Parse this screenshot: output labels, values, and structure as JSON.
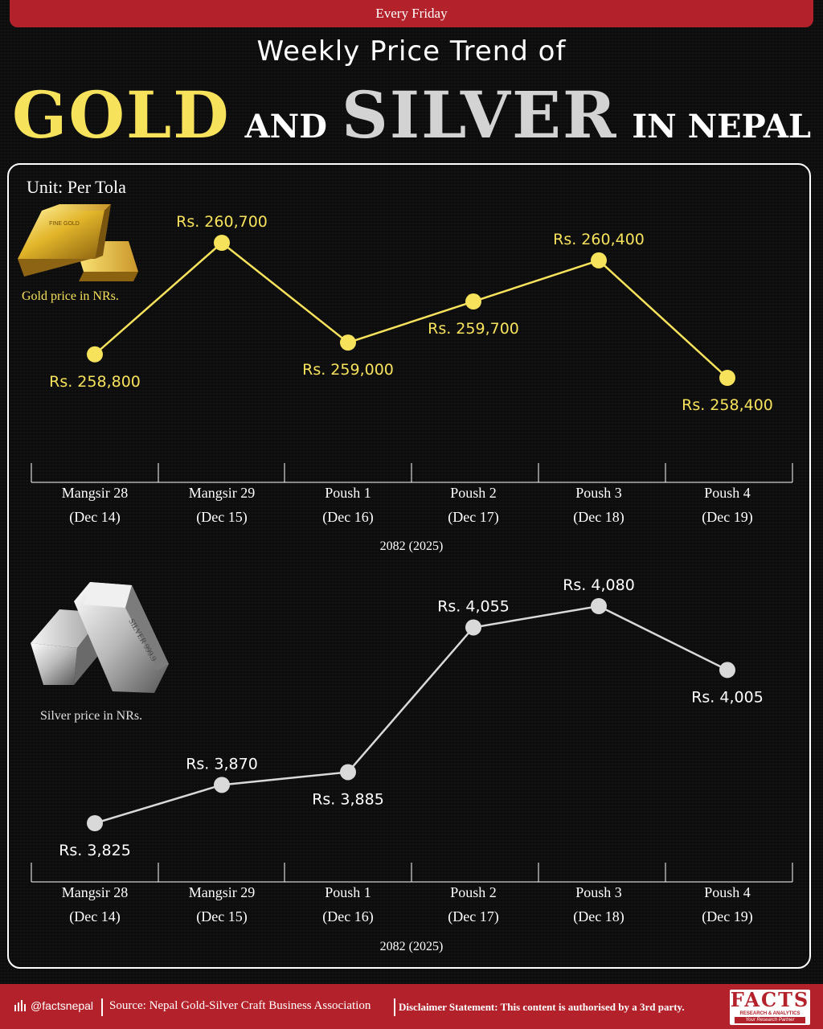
{
  "header": {
    "top_banner": "Every Friday"
  },
  "title": {
    "line1": "Weekly Price Trend of",
    "gold": "GOLD",
    "and": "AND",
    "silver": "SILVER",
    "in_nepal": "IN NEPAL"
  },
  "unit": "Unit: Per Tola",
  "gold_caption": "Gold price in NRs.",
  "silver_caption": "Silver price in NRs.",
  "footer": {
    "handle": "@factsnepal",
    "source": "Source: Nepal Gold-Silver Craft Business Association",
    "disclaimer": "Disclaimer Statement: This content is authorised by a 3rd party.",
    "logo_main": "FACTS",
    "logo_sub": "RESEARCH & ANALYTICS",
    "logo_tag": "Your Research Partner"
  },
  "colors": {
    "gold": "#f7e25c",
    "silver": "#d9d9d9",
    "accent_red": "#b3222b",
    "background": "#0d0d0d"
  },
  "chart_data": [
    {
      "type": "line",
      "title": "",
      "categories": [
        "Mangsir 28|(Dec 14)",
        "Mangsir 29|(Dec 15)",
        "Poush 1|(Dec 16)",
        "Poush 2|(Dec 17)",
        "Poush 3|(Dec 18)",
        "Poush 4|(Dec 19)"
      ],
      "xlabel": "2082 (2025)",
      "ylabel": "",
      "series": [
        {
          "values": [
            258800,
            260700,
            259000,
            259700,
            260400,
            258400
          ]
        }
      ],
      "labels": [
        "Rs. 258,800",
        "Rs. 260,700",
        "Rs. 259,000",
        "Rs. 259,700",
        "Rs. 260,400",
        "Rs. 258,400"
      ],
      "label_pos": [
        "below",
        "above",
        "below",
        "below",
        "above",
        "below"
      ],
      "ylim": [
        258400,
        260700
      ],
      "color": "#f7e25c",
      "grid": false
    },
    {
      "type": "line",
      "title": "",
      "categories": [
        "Mangsir 28|(Dec 14)",
        "Mangsir 29|(Dec 15)",
        "Poush 1|(Dec 16)",
        "Poush 2|(Dec 17)",
        "Poush 3|(Dec 18)",
        "Poush 4|(Dec 19)"
      ],
      "xlabel": "2082 (2025)",
      "ylabel": "",
      "series": [
        {
          "values": [
            3825,
            3870,
            3885,
            4055,
            4080,
            4005
          ]
        }
      ],
      "labels": [
        "Rs. 3,825",
        "Rs. 3,870",
        "Rs. 3,885",
        "Rs. 4,055",
        "Rs. 4,080",
        "Rs. 4,005"
      ],
      "label_pos": [
        "below",
        "above",
        "below",
        "above",
        "above",
        "below"
      ],
      "ylim": [
        3825,
        4080
      ],
      "color": "#d9d9d9",
      "grid": false
    }
  ]
}
